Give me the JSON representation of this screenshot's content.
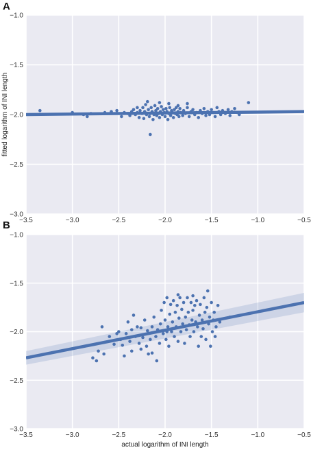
{
  "figure": {
    "background": "#ffffff",
    "plot_bg": "#eaeaf2",
    "grid_color": "#ffffff",
    "point_color": "#4c72b0",
    "line_color": "#4c72b0",
    "band_color": "#4c72b0"
  },
  "chart_data": [
    {
      "panel_label": "A",
      "type": "scatter",
      "title": "",
      "xlabel": "",
      "ylabel": "fitted logarithm of INI length",
      "xlim": [
        -3.5,
        -0.5
      ],
      "ylim": [
        -3.0,
        -1.0
      ],
      "x_ticks": [
        -3.5,
        -3.0,
        -2.5,
        -2.0,
        -1.5,
        -1.0,
        -0.5
      ],
      "x_tick_labels": [
        "−3.5",
        "−3.0",
        "−2.5",
        "−2.0",
        "−1.5",
        "−1.0",
        "−0.5"
      ],
      "y_ticks": [
        -1.0,
        -1.5,
        -2.0,
        -2.5,
        -3.0
      ],
      "y_tick_labels": [
        "−1.0",
        "−1.5",
        "−2.0",
        "−2.5",
        "−3.0"
      ],
      "grid": true,
      "regression": {
        "x": [
          -3.5,
          -0.5
        ],
        "y": [
          -2.0,
          -1.97
        ],
        "ci_upper": [
          -1.995,
          -1.965
        ],
        "ci_lower": [
          -2.005,
          -1.975
        ]
      },
      "points": [
        [
          -3.35,
          -1.96
        ],
        [
          -3.0,
          -1.98
        ],
        [
          -2.88,
          -2.0
        ],
        [
          -2.84,
          -2.02
        ],
        [
          -2.8,
          -1.99
        ],
        [
          -2.65,
          -1.98
        ],
        [
          -2.58,
          -1.97
        ],
        [
          -2.52,
          -1.96
        ],
        [
          -2.47,
          -2.02
        ],
        [
          -2.44,
          -1.98
        ],
        [
          -2.4,
          -1.99
        ],
        [
          -2.38,
          -2.01
        ],
        [
          -2.36,
          -1.97
        ],
        [
          -2.34,
          -1.95
        ],
        [
          -2.32,
          -2.0
        ],
        [
          -2.3,
          -1.98
        ],
        [
          -2.28,
          -2.03
        ],
        [
          -2.27,
          -1.96
        ],
        [
          -2.25,
          -1.99
        ],
        [
          -2.24,
          -1.93
        ],
        [
          -2.23,
          -2.04
        ],
        [
          -2.22,
          -1.97
        ],
        [
          -2.21,
          -1.9
        ],
        [
          -2.2,
          -2.0
        ],
        [
          -2.19,
          -1.87
        ],
        [
          -2.18,
          -1.95
        ],
        [
          -2.17,
          -2.02
        ],
        [
          -2.16,
          -1.99
        ],
        [
          -2.15,
          -1.93
        ],
        [
          -2.14,
          -1.97
        ],
        [
          -2.13,
          -2.05
        ],
        [
          -2.12,
          -2.0
        ],
        [
          -2.11,
          -1.91
        ],
        [
          -2.1,
          -1.96
        ],
        [
          -2.09,
          -2.01
        ],
        [
          -2.08,
          -1.94
        ],
        [
          -2.07,
          -1.99
        ],
        [
          -2.06,
          -2.03
        ],
        [
          -2.05,
          -1.97
        ],
        [
          -2.04,
          -1.92
        ],
        [
          -2.03,
          -2.0
        ],
        [
          -2.02,
          -1.95
        ],
        [
          -2.01,
          -1.98
        ],
        [
          -2.0,
          -2.02
        ],
        [
          -1.99,
          -1.94
        ],
        [
          -1.98,
          -1.97
        ],
        [
          -1.97,
          -2.05
        ],
        [
          -1.96,
          -1.99
        ],
        [
          -1.95,
          -1.93
        ],
        [
          -1.94,
          -2.01
        ],
        [
          -1.93,
          -1.96
        ],
        [
          -1.92,
          -1.98
        ],
        [
          -1.91,
          -2.03
        ],
        [
          -1.9,
          -1.95
        ],
        [
          -1.89,
          -1.99
        ],
        [
          -1.88,
          -1.93
        ],
        [
          -1.87,
          -2.0
        ],
        [
          -1.86,
          -1.97
        ],
        [
          -1.85,
          -2.02
        ],
        [
          -1.84,
          -1.94
        ],
        [
          -1.83,
          -1.98
        ],
        [
          -1.81,
          -2.01
        ],
        [
          -1.8,
          -1.96
        ],
        [
          -1.78,
          -1.99
        ],
        [
          -1.76,
          -1.93
        ],
        [
          -1.74,
          -2.02
        ],
        [
          -1.72,
          -1.97
        ],
        [
          -1.7,
          -1.95
        ],
        [
          -1.68,
          -2.0
        ],
        [
          -1.66,
          -1.98
        ],
        [
          -1.64,
          -2.03
        ],
        [
          -1.62,
          -1.96
        ],
        [
          -1.6,
          -1.99
        ],
        [
          -1.58,
          -1.94
        ],
        [
          -1.56,
          -2.01
        ],
        [
          -1.54,
          -1.97
        ],
        [
          -1.52,
          -2.0
        ],
        [
          -1.5,
          -1.95
        ],
        [
          -1.48,
          -1.98
        ],
        [
          -1.46,
          -2.02
        ],
        [
          -1.44,
          -1.93
        ],
        [
          -1.42,
          -1.97
        ],
        [
          -1.4,
          -2.0
        ],
        [
          -1.38,
          -1.96
        ],
        [
          -1.35,
          -1.99
        ],
        [
          -1.32,
          -1.95
        ],
        [
          -1.3,
          -2.01
        ],
        [
          -1.28,
          -1.97
        ],
        [
          -1.25,
          -1.94
        ],
        [
          -1.22,
          -1.98
        ],
        [
          -1.2,
          -2.0
        ],
        [
          -1.1,
          -1.88
        ],
        [
          -2.16,
          -2.2
        ],
        [
          -2.06,
          -1.88
        ],
        [
          -1.96,
          -1.89
        ],
        [
          -1.76,
          -1.89
        ],
        [
          -1.86,
          -1.91
        ],
        [
          -2.3,
          -1.93
        ]
      ]
    },
    {
      "panel_label": "B",
      "type": "scatter",
      "title": "",
      "xlabel": "actual logarithm of INI length",
      "ylabel": "",
      "xlim": [
        -3.5,
        -0.5
      ],
      "ylim": [
        -3.0,
        -1.0
      ],
      "x_ticks": [
        -3.5,
        -3.0,
        -2.5,
        -2.0,
        -1.5,
        -1.0,
        -0.5
      ],
      "x_tick_labels": [
        "−3.5",
        "−3.0",
        "−2.5",
        "−2.0",
        "−1.5",
        "−1.0",
        "−0.5"
      ],
      "y_ticks": [
        -1.0,
        -1.5,
        -2.0,
        -2.5,
        -3.0
      ],
      "y_tick_labels": [
        "−1.0",
        "−1.5",
        "−2.0",
        "−2.5",
        "−3.0"
      ],
      "grid": true,
      "regression": {
        "x": [
          -3.5,
          -0.5
        ],
        "y": [
          -2.27,
          -1.7
        ],
        "ci_upper": [
          -2.2,
          -1.6
        ],
        "ci_lower": [
          -2.34,
          -1.8
        ]
      },
      "points": [
        [
          -2.78,
          -2.27
        ],
        [
          -2.74,
          -2.3
        ],
        [
          -2.72,
          -2.2
        ],
        [
          -2.68,
          -1.95
        ],
        [
          -2.66,
          -2.23
        ],
        [
          -2.6,
          -2.05
        ],
        [
          -2.55,
          -2.13
        ],
        [
          -2.5,
          -2.0
        ],
        [
          -2.48,
          -2.08
        ],
        [
          -2.46,
          -2.14
        ],
        [
          -2.44,
          -2.25
        ],
        [
          -2.42,
          -2.02
        ],
        [
          -2.4,
          -1.9
        ],
        [
          -2.38,
          -2.1
        ],
        [
          -2.36,
          -2.2
        ],
        [
          -2.34,
          -1.83
        ],
        [
          -2.32,
          -2.05
        ],
        [
          -2.3,
          -1.95
        ],
        [
          -2.28,
          -2.12
        ],
        [
          -2.26,
          -1.96
        ],
        [
          -2.24,
          -2.06
        ],
        [
          -2.22,
          -1.88
        ],
        [
          -2.2,
          -2.15
        ],
        [
          -2.19,
          -1.99
        ],
        [
          -2.18,
          -2.23
        ],
        [
          -2.16,
          -2.08
        ],
        [
          -2.14,
          -1.95
        ],
        [
          -2.12,
          -1.85
        ],
        [
          -2.1,
          -2.05
        ],
        [
          -2.09,
          -2.3
        ],
        [
          -2.08,
          -1.98
        ],
        [
          -2.06,
          -2.12
        ],
        [
          -2.05,
          -1.92
        ],
        [
          -2.04,
          -1.78
        ],
        [
          -2.02,
          -2.02
        ],
        [
          -2.01,
          -1.7
        ],
        [
          -2.0,
          -1.88
        ],
        [
          -1.99,
          -2.08
        ],
        [
          -1.98,
          -1.65
        ],
        [
          -1.97,
          -1.95
        ],
        [
          -1.96,
          -2.15
        ],
        [
          -1.95,
          -1.82
        ],
        [
          -1.94,
          -1.72
        ],
        [
          -1.93,
          -2.0
        ],
        [
          -1.92,
          -1.9
        ],
        [
          -1.91,
          -1.68
        ],
        [
          -1.9,
          -2.05
        ],
        [
          -1.89,
          -1.8
        ],
        [
          -1.88,
          -1.95
        ],
        [
          -1.87,
          -1.73
        ],
        [
          -1.86,
          -2.1
        ],
        [
          -1.85,
          -1.86
        ],
        [
          -1.84,
          -1.65
        ],
        [
          -1.83,
          -2.0
        ],
        [
          -1.82,
          -1.77
        ],
        [
          -1.81,
          -1.92
        ],
        [
          -1.8,
          -1.7
        ],
        [
          -1.79,
          -2.12
        ],
        [
          -1.78,
          -1.85
        ],
        [
          -1.77,
          -1.98
        ],
        [
          -1.76,
          -1.65
        ],
        [
          -1.75,
          -1.8
        ],
        [
          -1.74,
          -1.93
        ],
        [
          -1.73,
          -2.05
        ],
        [
          -1.72,
          -1.7
        ],
        [
          -1.71,
          -1.88
        ],
        [
          -1.7,
          -1.78
        ],
        [
          -1.69,
          -2.0
        ],
        [
          -1.68,
          -1.73
        ],
        [
          -1.67,
          -1.9
        ],
        [
          -1.66,
          -1.68
        ],
        [
          -1.65,
          -1.95
        ],
        [
          -1.64,
          -2.15
        ],
        [
          -1.63,
          -1.83
        ],
        [
          -1.62,
          -1.72
        ],
        [
          -1.61,
          -2.05
        ],
        [
          -1.6,
          -1.88
        ],
        [
          -1.59,
          -1.97
        ],
        [
          -1.58,
          -1.65
        ],
        [
          -1.57,
          -1.8
        ],
        [
          -1.56,
          -2.08
        ],
        [
          -1.55,
          -1.75
        ],
        [
          -1.54,
          -1.58
        ],
        [
          -1.53,
          -1.92
        ],
        [
          -1.52,
          -1.85
        ],
        [
          -1.51,
          -2.15
        ],
        [
          -1.5,
          -1.7
        ],
        [
          -1.49,
          -2.0
        ],
        [
          -1.48,
          -1.88
        ],
        [
          -1.47,
          -1.8
        ],
        [
          -1.46,
          -2.05
        ],
        [
          -1.45,
          -1.95
        ],
        [
          -1.43,
          -1.73
        ],
        [
          -1.41,
          -1.9
        ],
        [
          -1.3,
          -1.85
        ],
        [
          -2.52,
          -2.02
        ],
        [
          -2.36,
          -1.98
        ],
        [
          -2.14,
          -2.22
        ],
        [
          -1.98,
          -2.0
        ],
        [
          -1.86,
          -1.62
        ],
        [
          -1.7,
          -1.63
        ],
        [
          -2.26,
          -2.18
        ]
      ]
    }
  ]
}
